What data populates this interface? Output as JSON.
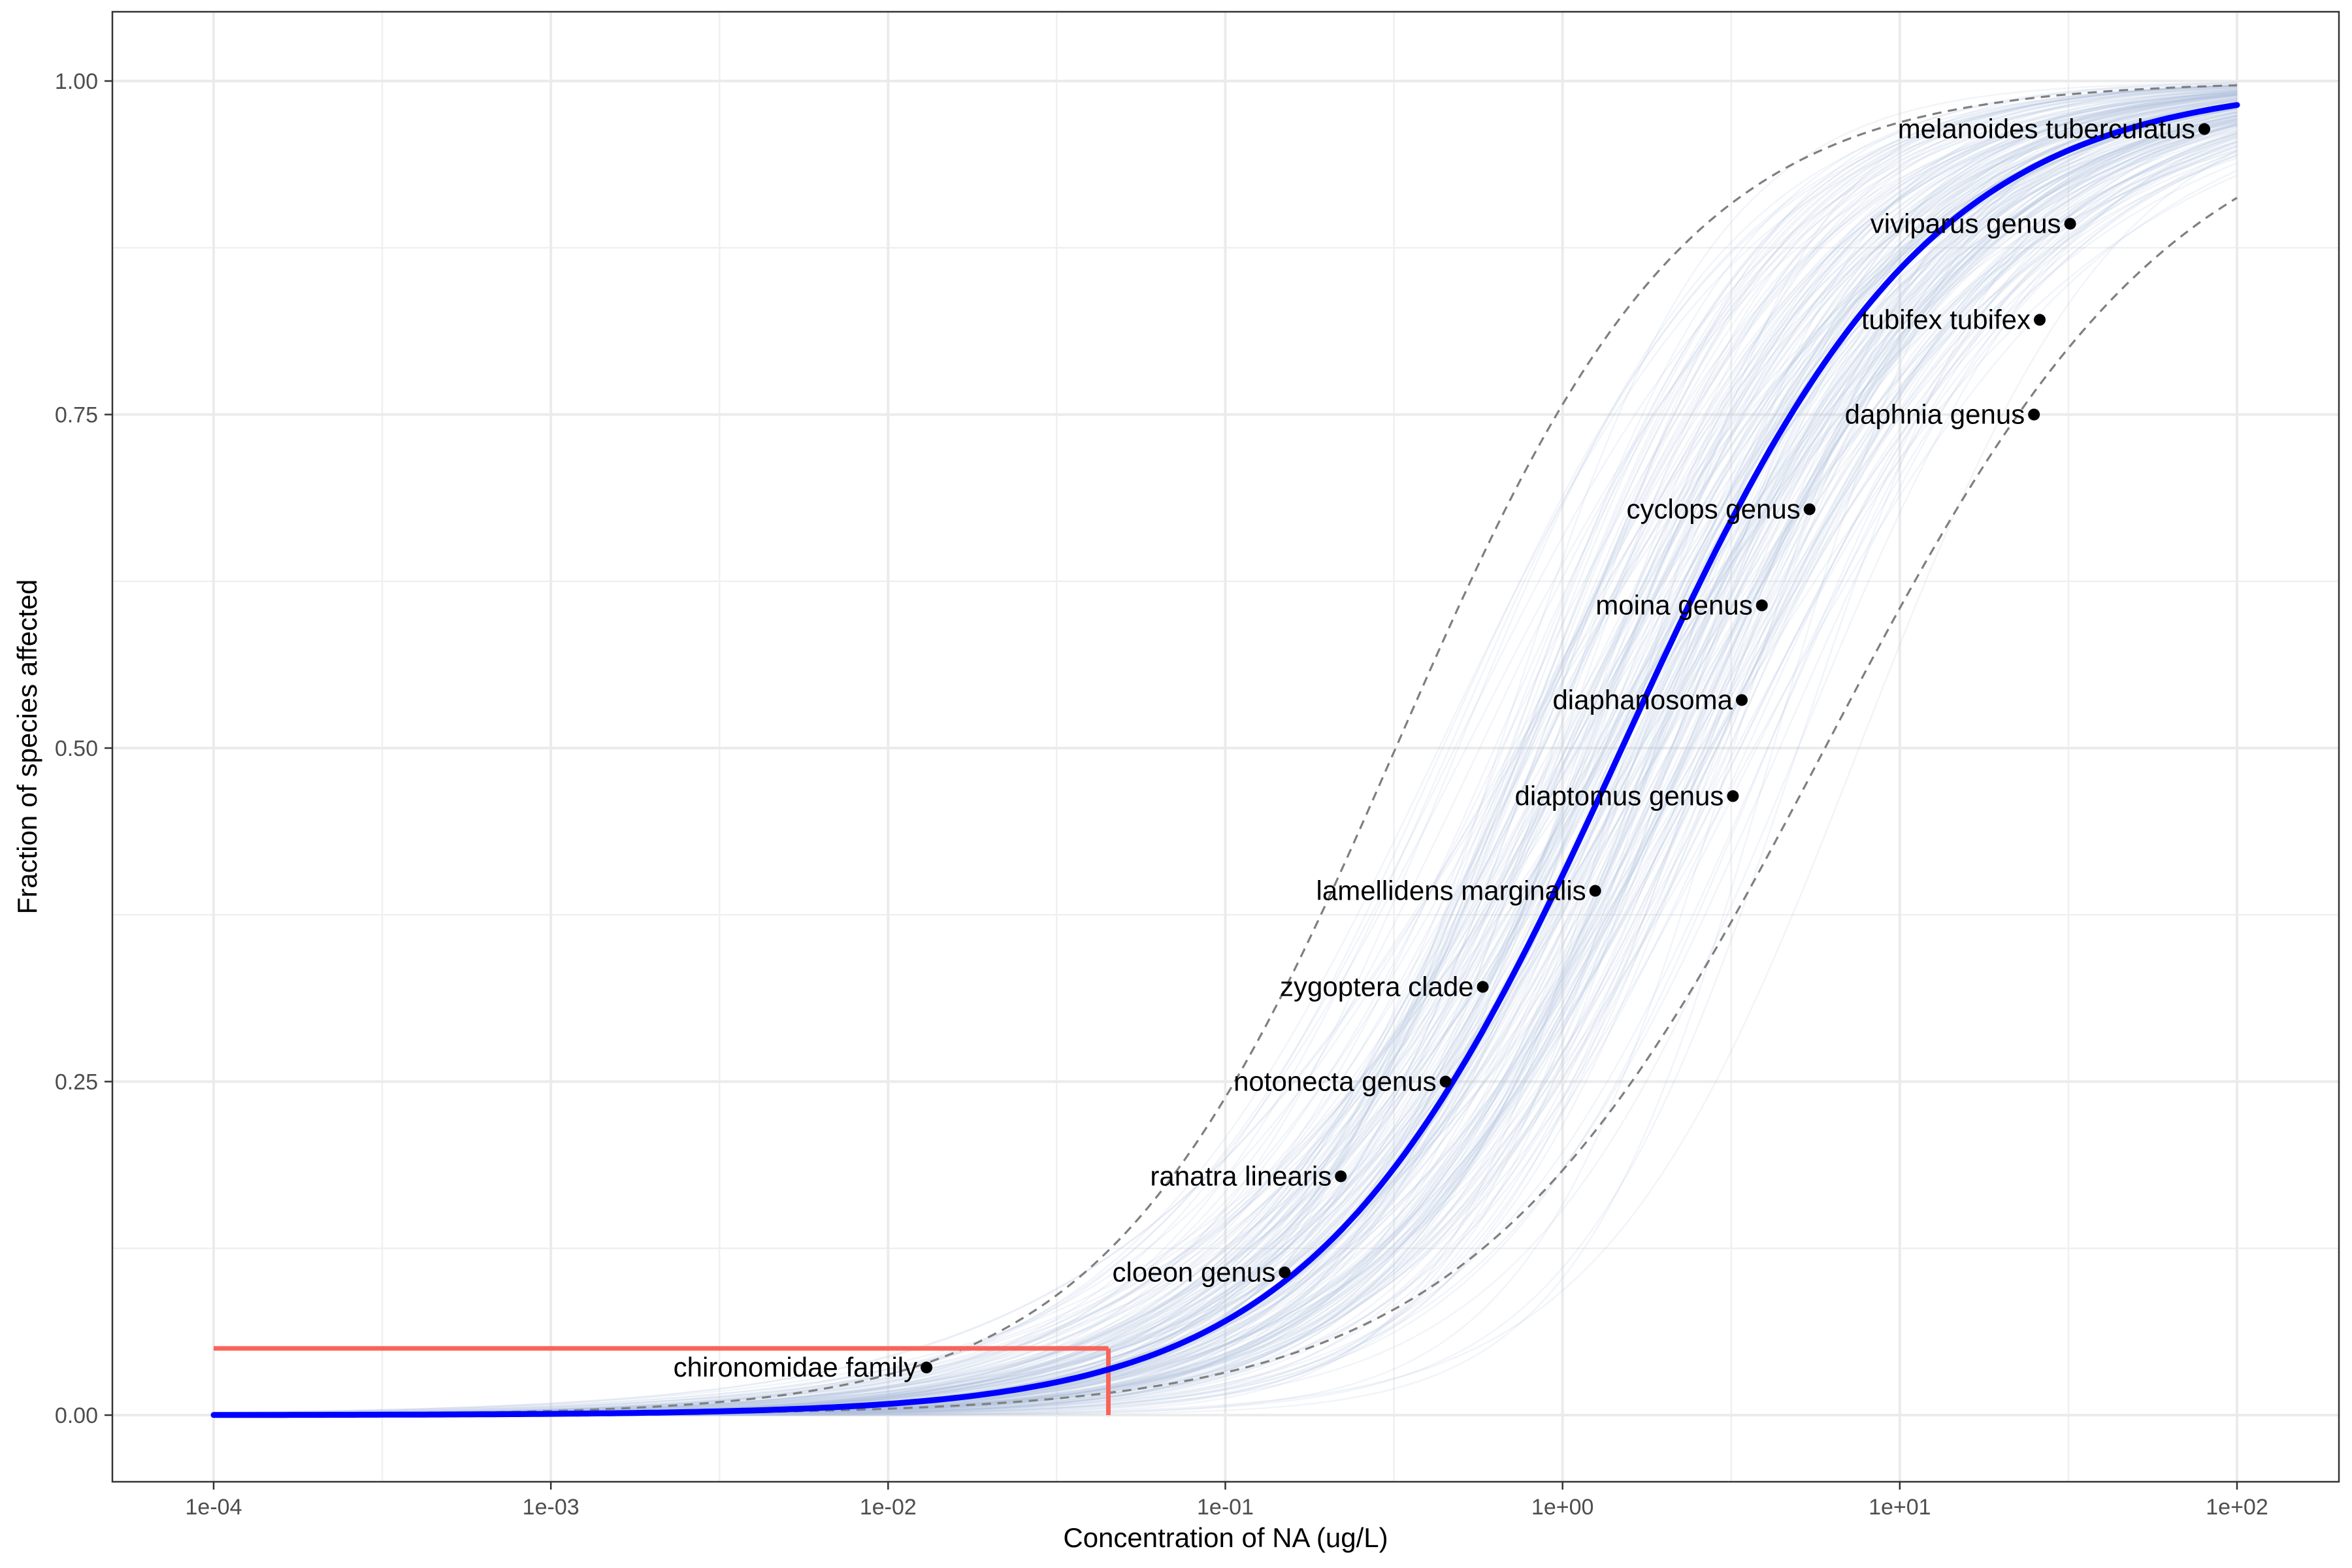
{
  "chart_data": {
    "type": "line",
    "title": "",
    "xlabel": "Concentration of NA (ug/L)",
    "ylabel": "Fraction of species affected",
    "x_scale": "log10",
    "xlim": [
      0.0001,
      100
    ],
    "ylim": [
      0,
      1
    ],
    "x_ticks": [
      0.0001,
      0.001,
      0.01,
      0.1,
      1,
      10,
      100
    ],
    "x_tick_labels": [
      "1e-04",
      "1e-03",
      "1e-02",
      "1e-01",
      "1e+00",
      "1e+01",
      "1e+02"
    ],
    "y_ticks": [
      0,
      0.25,
      0.5,
      0.75,
      1
    ],
    "y_tick_labels": [
      "0.00",
      "0.25",
      "0.50",
      "0.75",
      "1.00"
    ],
    "grid": true,
    "fitted_curve": {
      "distribution": "log-logistic",
      "median": 1.5,
      "shape": 1.05,
      "color": "#0000ff"
    },
    "confidence_band": {
      "lower": {
        "median": 6.0,
        "shape": 1.2
      },
      "upper": {
        "median": 0.32,
        "shape": 1.0
      },
      "color": "#7f7f7f"
    },
    "bootstrap_curves": {
      "count": 200,
      "color": "#b0c4de"
    },
    "hc5": {
      "concentration": 0.045,
      "fraction": 0.05,
      "color": "#f8645a"
    },
    "points": [
      {
        "label": "chironomidae family",
        "x": 0.013,
        "y": 0.0357
      },
      {
        "label": "cloeon genus",
        "x": 0.15,
        "y": 0.107
      },
      {
        "label": "ranatra linearis",
        "x": 0.22,
        "y": 0.179
      },
      {
        "label": "notonecta genus",
        "x": 0.45,
        "y": 0.25
      },
      {
        "label": "zygoptera clade",
        "x": 0.58,
        "y": 0.321
      },
      {
        "label": "lamellidens marginalis",
        "x": 1.25,
        "y": 0.393
      },
      {
        "label": "diaptomus genus",
        "x": 3.2,
        "y": 0.464
      },
      {
        "label": "diaphanosoma",
        "x": 3.4,
        "y": 0.536
      },
      {
        "label": "moina genus",
        "x": 3.9,
        "y": 0.607
      },
      {
        "label": "cyclops genus",
        "x": 5.4,
        "y": 0.679
      },
      {
        "label": "daphnia genus",
        "x": 25,
        "y": 0.75
      },
      {
        "label": "tubifex tubifex",
        "x": 26,
        "y": 0.821
      },
      {
        "label": "viviparus genus",
        "x": 32,
        "y": 0.893
      },
      {
        "label": "melanoides tuberculatus",
        "x": 80,
        "y": 0.964
      }
    ],
    "point_color": "#000000"
  }
}
